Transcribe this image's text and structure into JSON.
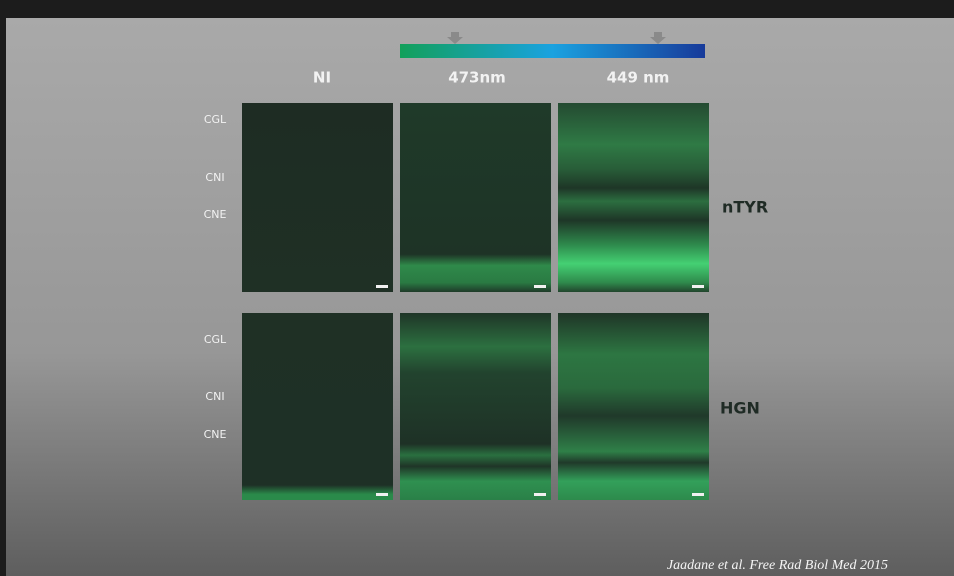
{
  "column_labels": [
    "NI",
    "473nm",
    "449 nm"
  ],
  "rows": [
    {
      "layer_labels": [
        "CGL",
        "CNI",
        "CNE"
      ],
      "marker": "nTYR"
    },
    {
      "layer_labels": [
        "CGL",
        "CNI",
        "CNE"
      ],
      "marker": "HGN"
    }
  ],
  "citation": "Jaadane et al. Free Rad Biol Med 2015"
}
